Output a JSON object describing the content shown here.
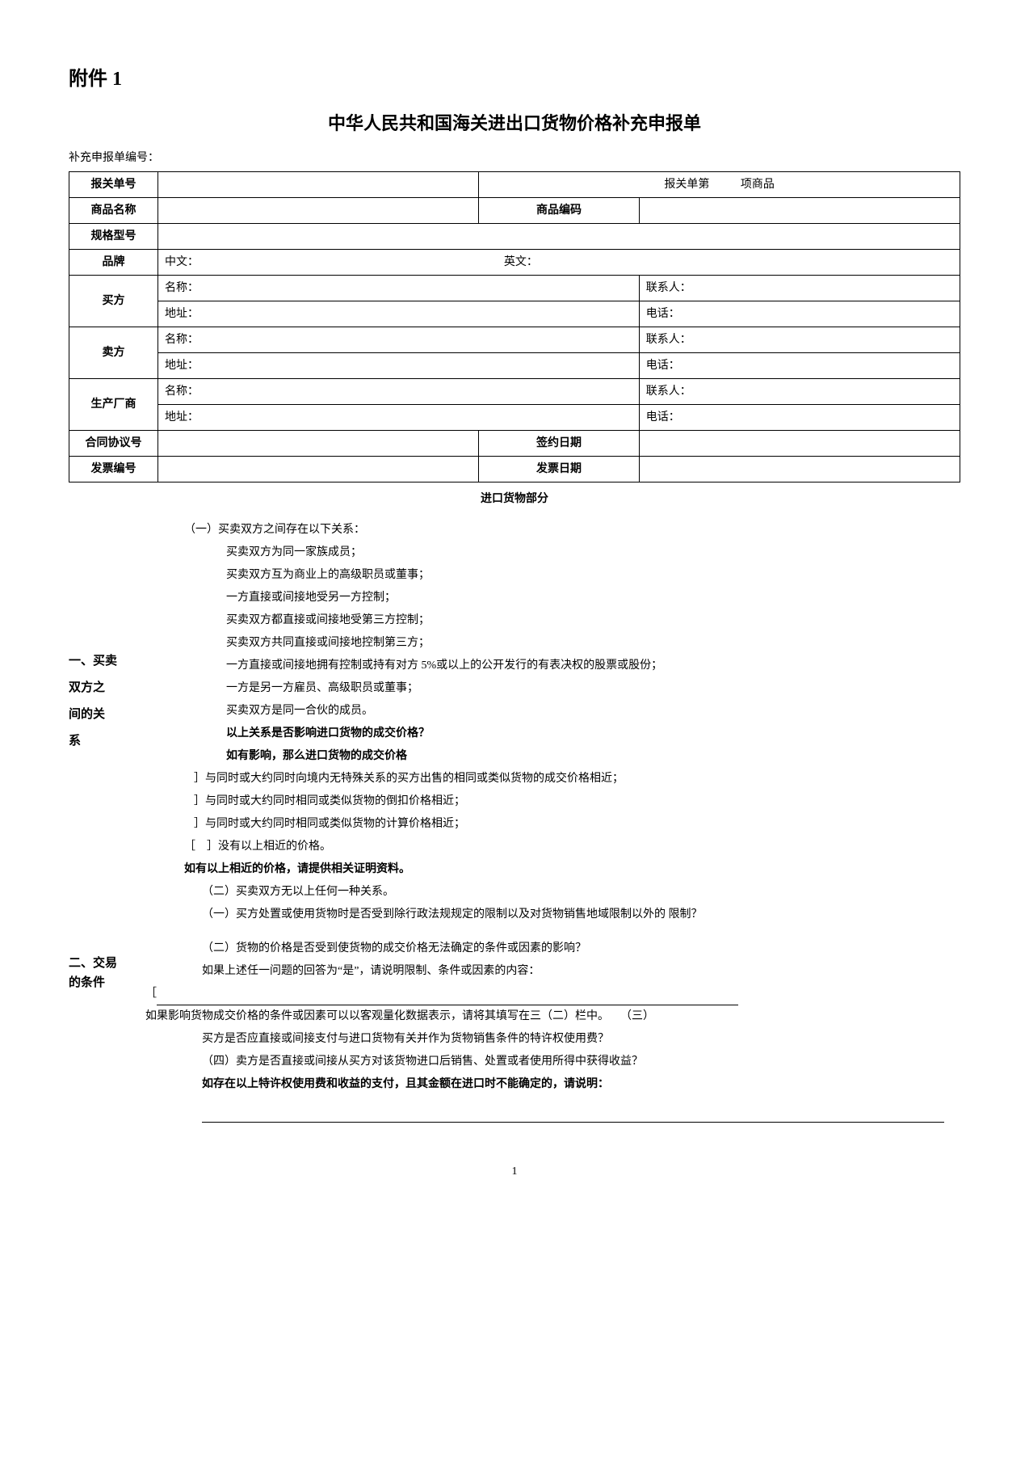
{
  "attachment_label": "附件 1",
  "title": "中华人民共和国海关进出口货物价格补充申报单",
  "ref_label": "补充申报单编号：",
  "table": {
    "declaration_no_label": "报关单号",
    "declaration_item_prefix": "报关单第",
    "declaration_item_suffix": "项商品",
    "product_name_label": "商品名称",
    "product_code_label": "商品编码",
    "spec_label": "规格型号",
    "brand_label": "品牌",
    "brand_cn": "中文：",
    "brand_en": "英文：",
    "buyer_label": "买方",
    "seller_label": "卖方",
    "manufacturer_label": "生产厂商",
    "name_label": "名称：",
    "contact_label": "联系人：",
    "address_label": "地址：",
    "phone_label": "电话：",
    "contract_no_label": "合同协议号",
    "sign_date_label": "签约日期",
    "invoice_no_label": "发票编号",
    "invoice_date_label": "发票日期"
  },
  "import_section_title": "进口货物部分",
  "section1": {
    "side": "一、买卖\n双方之\n间的关\n系",
    "head": "（一）买卖双方之间存在以下关系：",
    "items": [
      " 买卖双方为同一家族成员；",
      " 买卖双方互为商业上的高级职员或董事；",
      " 一方直接或间接地受另一方控制；",
      " 买卖双方都直接或间接地受第三方控制；",
      " 买卖双方共同直接或间接地控制第三方；",
      " 一方直接或间接地拥有控制或持有对方        5%或以上的公开发行的有表决权的股票或股份；",
      " 一方是另一方雇员、高级职员或董事；",
      " 买卖双方是同一合伙的成员。"
    ],
    "q1": "以上关系是否影响进口货物的成交价格？",
    "q1_sub": "如有影响，那么进口货物的成交价格",
    "opts": [
      " ］与同时或大约同时向境内无特殊关系的买方出售的相同或类似货物的成交价格相近；",
      " ］与同时或大约同时相同或类似货物的倒扣价格相近；",
      " ］与同时或大约同时相同或类似货物的计算价格相近；",
      "［　］没有以上相近的价格。"
    ],
    "note": "如有以上相近的价格，请提供相关证明资料。",
    "tail": "（二）买卖双方无以上任何一种关系。"
  },
  "section2": {
    "side": "二、交易\n的条件",
    "p1": "（一）买方处置或使用货物时是否受到除行政法规规定的限制以及对货物销售地域限制以外的 限制？",
    "p2": "（二）货物的价格是否受到使货物的成交价格无法确定的条件或因素的影响？",
    "p3": "如果上述任一问题的回答为“是”，请说明限制、条件或因素的内容：",
    "bracket": "［",
    "p4_a": "如果影响货物成交价格的条件或因素可以以客观量化数据表示，请将其填写在三（二）栏中。",
    "p4_b": "（三）",
    "p5": "买方是否应直接或间接支付与进口货物有关并作为货物销售条件的特许权使用费？",
    "p6": "（四）卖方是否直接或间接从买方对该货物进口后销售、处置或者使用所得中获得收益？",
    "p7": "如存在以上特许权使用费和收益的支付，且其金额在进口时不能确定的，请说明："
  },
  "page_number": "1"
}
